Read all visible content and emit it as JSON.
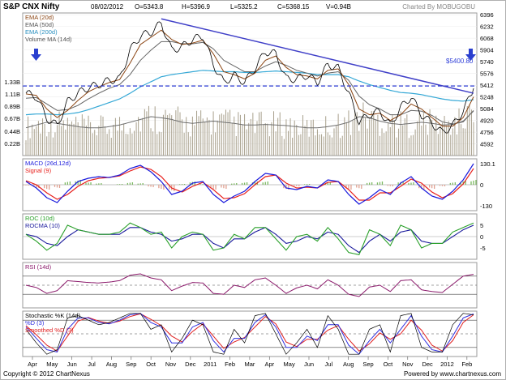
{
  "header": {
    "title": "S&P CNX Nifty",
    "date": "08/02/2012",
    "open": "O=5343.8",
    "high": "H=5396.9",
    "low": "L=5325.2",
    "close": "C=5368.15",
    "volume": "V=0.94B",
    "credit": "Charted By MOBUGOBU"
  },
  "footer": {
    "copyright": "Copyright © 2012 ChartNexus",
    "powered": "Powered by www.chartnexus.com"
  },
  "colors": {
    "price": "#000000",
    "ema20": "#8b4513",
    "ema50": "#666666",
    "ema200": "#35a8d6",
    "volume": "#a8a08c",
    "volma": "#6e6e6e",
    "trendline": "#4040c8",
    "support": "#2f3fd8",
    "arrow": "#2a3fcf",
    "macd": "#1a1adc",
    "signal": "#e8201c",
    "hist_pos": "#7ab85f",
    "hist_neg": "#e0a090",
    "roc": "#2aa02a",
    "rocma": "#1a1a9c",
    "rsi": "#8b1a6b",
    "stoch_k": "#000000",
    "stoch_d": "#3030e0",
    "stoch_smooth": "#e02020"
  },
  "chart_data": [
    {
      "type": "line",
      "title": "S&P CNX Nifty",
      "series": [
        {
          "name": "EMA (20d)"
        },
        {
          "name": "EMA (50d)"
        },
        {
          "name": "EMA (200d)"
        },
        {
          "name": "Volume MA (14d)"
        }
      ],
      "price_series": {
        "x": [
          "2010-04-01",
          "2010-04-20",
          "2010-05-10",
          "2010-05-25",
          "2010-06-10",
          "2010-06-25",
          "2010-07-15",
          "2010-08-01",
          "2010-08-20",
          "2010-09-05",
          "2010-09-20",
          "2010-10-05",
          "2010-10-20",
          "2010-11-05",
          "2010-11-20",
          "2010-12-05",
          "2010-12-20",
          "2011-01-05",
          "2011-01-20",
          "2011-02-05",
          "2011-02-20",
          "2011-03-05",
          "2011-03-20",
          "2011-04-05",
          "2011-04-20",
          "2011-05-05",
          "2011-05-20",
          "2011-06-05",
          "2011-06-20",
          "2011-07-05",
          "2011-07-20",
          "2011-08-05",
          "2011-08-20",
          "2011-09-05",
          "2011-09-20",
          "2011-10-05",
          "2011-10-20",
          "2011-11-05",
          "2011-11-20",
          "2011-12-05",
          "2011-12-20",
          "2012-01-05",
          "2012-01-20",
          "2012-02-08"
        ],
        "close": [
          5300,
          5250,
          4950,
          4850,
          5180,
          5300,
          5380,
          5420,
          5480,
          5500,
          5900,
          6100,
          6150,
          6280,
          5900,
          5950,
          6050,
          6100,
          5700,
          5450,
          5550,
          5450,
          5650,
          5880,
          5850,
          5500,
          5500,
          5550,
          5450,
          5700,
          5650,
          5300,
          4900,
          5000,
          5050,
          4850,
          5100,
          5250,
          5000,
          4880,
          4750,
          4850,
          5050,
          5368
        ]
      },
      "ema20": [
        5290,
        5270,
        5080,
        4960,
        5060,
        5200,
        5320,
        5390,
        5450,
        5490,
        5720,
        5980,
        6080,
        6180,
        6050,
        5980,
        6000,
        6040,
        5850,
        5600,
        5560,
        5500,
        5580,
        5760,
        5820,
        5660,
        5560,
        5540,
        5500,
        5620,
        5640,
        5420,
        5080,
        5000,
        5020,
        4920,
        5000,
        5150,
        5080,
        4960,
        4840,
        4840,
        4960,
        5250
      ],
      "ema50": [
        5230,
        5240,
        5150,
        5060,
        5070,
        5130,
        5220,
        5300,
        5370,
        5420,
        5560,
        5760,
        5900,
        6020,
        6020,
        5990,
        5990,
        6010,
        5920,
        5760,
        5680,
        5600,
        5600,
        5680,
        5740,
        5690,
        5620,
        5580,
        5540,
        5580,
        5600,
        5480,
        5260,
        5140,
        5080,
        5000,
        5000,
        5060,
        5050,
        4990,
        4900,
        4870,
        4900,
        5060
      ],
      "ema200": [
        5000,
        5010,
        5010,
        5000,
        5010,
        5030,
        5070,
        5120,
        5170,
        5220,
        5300,
        5390,
        5460,
        5530,
        5560,
        5580,
        5600,
        5620,
        5610,
        5600,
        5600,
        5590,
        5590,
        5600,
        5610,
        5600,
        5590,
        5580,
        5560,
        5560,
        5560,
        5530,
        5470,
        5420,
        5380,
        5340,
        5310,
        5300,
        5280,
        5250,
        5220,
        5200,
        5190,
        5210
      ],
      "volume_ma": [
        0.5,
        0.55,
        0.6,
        0.58,
        0.55,
        0.52,
        0.5,
        0.5,
        0.52,
        0.55,
        0.6,
        0.65,
        0.7,
        0.68,
        0.65,
        0.6,
        0.58,
        0.6,
        0.62,
        0.6,
        0.58,
        0.55,
        0.55,
        0.56,
        0.55,
        0.54,
        0.52,
        0.5,
        0.5,
        0.52,
        0.55,
        0.6,
        0.7,
        0.68,
        0.62,
        0.58,
        0.56,
        0.58,
        0.6,
        0.58,
        0.55,
        0.56,
        0.62,
        0.8
      ],
      "trendline": {
        "label": "",
        "from": {
          "x": "2010-11-05",
          "y": 6338
        },
        "to": {
          "x": "2012-02-08",
          "y": 5300
        }
      },
      "support_line": {
        "label": "$5400.80",
        "y": 5400.8
      },
      "y_ticks": [
        "6396",
        "6232",
        "6068",
        "5904",
        "5740",
        "5576",
        "5412",
        "5248",
        "5084",
        "4920",
        "4756",
        "4592"
      ],
      "volume_ticks": [
        "1.33B",
        "1.11B",
        "0.89B",
        "0.67B",
        "0.44B",
        "0.22B"
      ],
      "ylim": [
        4430,
        6420
      ]
    },
    {
      "type": "line",
      "title": "MACD (26d,12d)",
      "series": [
        {
          "name": "MACD (26d,12d)",
          "values": [
            20,
            -20,
            -80,
            -110,
            -40,
            20,
            40,
            50,
            45,
            60,
            100,
            120,
            80,
            20,
            -60,
            -40,
            10,
            20,
            -60,
            -110,
            -70,
            -40,
            20,
            70,
            60,
            -20,
            -30,
            -10,
            -20,
            30,
            20,
            -60,
            -120,
            -80,
            -30,
            -60,
            10,
            50,
            -20,
            -70,
            -90,
            -40,
            30,
            130
          ]
        },
        {
          "name": "Signal (9)",
          "values": [
            25,
            0,
            -50,
            -90,
            -60,
            -10,
            25,
            40,
            45,
            55,
            85,
            110,
            95,
            50,
            -20,
            -45,
            -10,
            15,
            -30,
            -85,
            -80,
            -55,
            0,
            50,
            60,
            10,
            -20,
            -15,
            -20,
            15,
            20,
            -30,
            -95,
            -95,
            -50,
            -50,
            -10,
            35,
            10,
            -45,
            -80,
            -55,
            5,
            100
          ]
        }
      ],
      "histogram": [
        -5,
        -20,
        -30,
        -20,
        20,
        30,
        15,
        10,
        0,
        5,
        15,
        10,
        -15,
        -30,
        -40,
        5,
        20,
        5,
        -30,
        -25,
        10,
        15,
        20,
        20,
        0,
        -30,
        -10,
        5,
        0,
        15,
        0,
        -30,
        -25,
        15,
        20,
        -10,
        20,
        15,
        -30,
        -25,
        -10,
        15,
        25,
        30
      ],
      "y_ticks": [
        "130.1",
        "0",
        "-130"
      ]
    },
    {
      "type": "line",
      "title": "ROC (10d)",
      "series": [
        {
          "name": "ROC (10d)",
          "values": [
            1,
            -2,
            -6,
            -3,
            5,
            3,
            2,
            1,
            1,
            2,
            6,
            4,
            1,
            2,
            -5,
            0,
            2,
            1,
            -6,
            -5,
            1,
            -1,
            4,
            4,
            -1,
            -6,
            0,
            1,
            -2,
            4,
            -1,
            -7,
            -8,
            3,
            1,
            -4,
            5,
            3,
            -5,
            -3,
            -3,
            2,
            4,
            6
          ]
        },
        {
          "name": "ROCMA (10)",
          "values": [
            1,
            0,
            -3,
            -4,
            0,
            3,
            2,
            1,
            1,
            1,
            4,
            4,
            2,
            1,
            -2,
            -1,
            1,
            1,
            -3,
            -5,
            -1,
            -1,
            2,
            4,
            1,
            -3,
            -2,
            0,
            -1,
            2,
            1,
            -4,
            -7,
            -2,
            1,
            -2,
            2,
            3,
            -2,
            -3,
            -3,
            0,
            3,
            5
          ]
        }
      ],
      "y_ticks": [
        "5",
        "0",
        "-5"
      ]
    },
    {
      "type": "line",
      "title": "RSI (14d)",
      "series": [
        {
          "name": "RSI (14d)",
          "values": [
            50,
            45,
            32,
            38,
            60,
            58,
            56,
            55,
            57,
            60,
            72,
            75,
            66,
            62,
            38,
            48,
            56,
            55,
            32,
            30,
            50,
            45,
            62,
            66,
            50,
            32,
            44,
            50,
            42,
            62,
            50,
            30,
            25,
            46,
            50,
            36,
            60,
            62,
            40,
            36,
            34,
            52,
            70,
            74
          ]
        }
      ],
      "ylim": [
        0,
        100
      ]
    },
    {
      "type": "line",
      "title": "Stochastic %K (14d)",
      "series": [
        {
          "name": "Stochastic %K (14d)",
          "values": [
            60,
            30,
            5,
            15,
            85,
            90,
            80,
            70,
            75,
            85,
            95,
            95,
            60,
            70,
            10,
            40,
            80,
            70,
            10,
            5,
            60,
            30,
            90,
            95,
            50,
            5,
            30,
            60,
            20,
            90,
            60,
            5,
            5,
            60,
            70,
            10,
            90,
            95,
            20,
            10,
            10,
            70,
            95,
            92
          ]
        },
        {
          "name": "%D (3)",
          "values": [
            65,
            40,
            15,
            10,
            60,
            85,
            85,
            75,
            72,
            80,
            92,
            95,
            75,
            65,
            30,
            30,
            65,
            75,
            35,
            10,
            40,
            40,
            75,
            92,
            65,
            20,
            20,
            45,
            35,
            70,
            70,
            25,
            5,
            35,
            60,
            30,
            60,
            90,
            45,
            15,
            10,
            45,
            85,
            94
          ]
        },
        {
          "name": "Smoothed %D (3)",
          "values": [
            68,
            48,
            25,
            12,
            45,
            78,
            86,
            78,
            73,
            78,
            88,
            94,
            82,
            68,
            45,
            32,
            55,
            72,
            45,
            18,
            32,
            42,
            65,
            88,
            72,
            32,
            22,
            38,
            38,
            58,
            68,
            38,
            12,
            28,
            52,
            38,
            50,
            80,
            58,
            25,
            12,
            35,
            75,
            92
          ]
        }
      ],
      "ylim": [
        0,
        100
      ]
    }
  ],
  "x_axis": {
    "labels": [
      "Apr",
      "May",
      "Jun",
      "Jul",
      "Aug",
      "Sep",
      "Oct",
      "Nov",
      "Dec",
      "2011",
      "Feb",
      "Mar",
      "Apr",
      "May",
      "Jun",
      "Jul",
      "Aug",
      "Sep",
      "Oct",
      "Nov",
      "Dec",
      "2012",
      "Feb"
    ]
  }
}
